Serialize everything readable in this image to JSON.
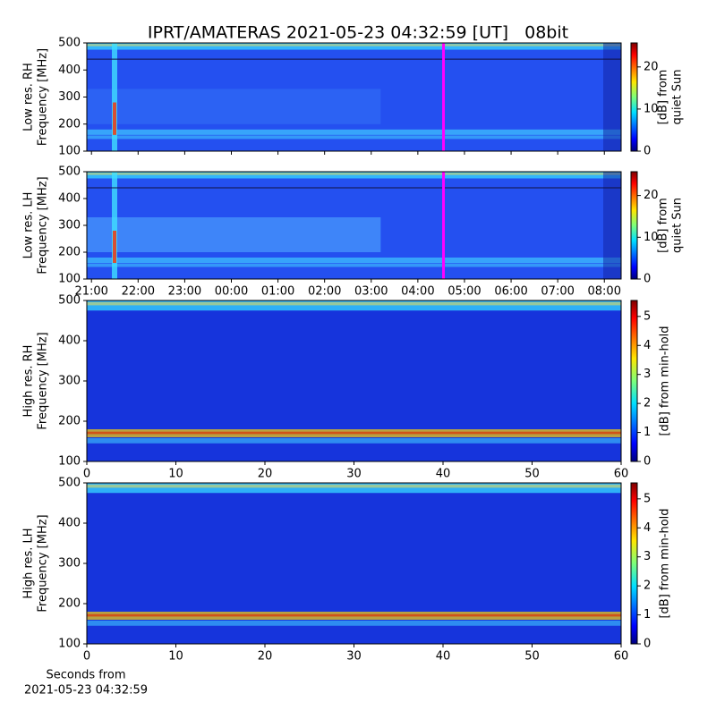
{
  "chart_data": [
    {
      "type": "heatmap",
      "title": "IPRT/AMATERAS 2021-05-23 04:32:59 [UT]   08bit",
      "ylabel": [
        "Low res. RH",
        "Frequency [MHz]"
      ],
      "xlim": [
        20.9,
        32.36
      ],
      "xticks": [
        21,
        22,
        23,
        24,
        25,
        26,
        27,
        28,
        29,
        30,
        31,
        32
      ],
      "ylim": [
        100,
        500
      ],
      "yticks": [
        100,
        200,
        300,
        400,
        500
      ],
      "vline": 28.55,
      "vline_color": "#ff00ff",
      "colorbar": {
        "label": [
          "[dB] from",
          "quiet Sun"
        ],
        "lim": [
          0,
          25.7
        ],
        "ticks": [
          0,
          10,
          20
        ]
      }
    },
    {
      "type": "heatmap",
      "ylabel": [
        "Low res. LH",
        "Frequency [MHz]"
      ],
      "xlim": [
        20.9,
        32.36
      ],
      "xticks": [
        {
          "value": 21,
          "label": "21:00"
        },
        {
          "value": 22,
          "label": "22:00"
        },
        {
          "value": 23,
          "label": "23:00"
        },
        {
          "value": 24,
          "label": "00:00"
        },
        {
          "value": 25,
          "label": "01:00"
        },
        {
          "value": 26,
          "label": "02:00"
        },
        {
          "value": 27,
          "label": "03:00"
        },
        {
          "value": 28,
          "label": "04:00"
        },
        {
          "value": 29,
          "label": "05:00"
        },
        {
          "value": 30,
          "label": "06:00"
        },
        {
          "value": 31,
          "label": "07:00"
        },
        {
          "value": 32,
          "label": "08:00"
        }
      ],
      "ylim": [
        100,
        500
      ],
      "yticks": [
        100,
        200,
        300,
        400,
        500
      ],
      "vline": 28.55,
      "vline_color": "#ff00ff",
      "colorbar": {
        "label": [
          "[dB] from",
          "quiet Sun"
        ],
        "lim": [
          0,
          25.7
        ],
        "ticks": [
          0,
          10,
          20
        ]
      }
    },
    {
      "type": "heatmap",
      "ylabel": [
        "High res. RH",
        "Frequency [MHz]"
      ],
      "xlim": [
        0,
        60
      ],
      "xticks": [
        0,
        10,
        20,
        30,
        40,
        50,
        60
      ],
      "ylim": [
        100,
        500
      ],
      "yticks": [
        100,
        200,
        300,
        400,
        500
      ],
      "colorbar": {
        "label": [
          "[dB] from min-hold"
        ],
        "lim": [
          0,
          5.55
        ],
        "ticks": [
          0,
          1,
          2,
          3,
          4,
          5
        ]
      }
    },
    {
      "type": "heatmap",
      "ylabel": [
        "High res. LH",
        "Frequency [MHz]"
      ],
      "xlim": [
        0,
        60
      ],
      "xticks": [
        0,
        10,
        20,
        30,
        40,
        50,
        60
      ],
      "xlabel": [
        "Seconds from",
        "2021-05-23 04:32:59"
      ],
      "ylim": [
        100,
        500
      ],
      "yticks": [
        100,
        200,
        300,
        400,
        500
      ],
      "colorbar": {
        "label": [
          "[dB] from min-hold"
        ],
        "lim": [
          0,
          5.55
        ],
        "ticks": [
          0,
          1,
          2,
          3,
          4,
          5
        ]
      }
    }
  ]
}
